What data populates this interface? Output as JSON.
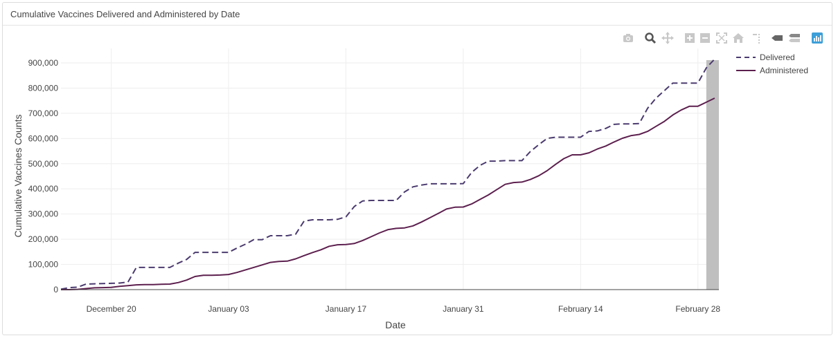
{
  "panel": {
    "title": "Cumulative Vaccines Delivered and Administered by Date"
  },
  "modebar": {
    "buttons": [
      "camera-icon",
      "zoom-icon",
      "pan-icon",
      "zoom-in-icon",
      "zoom-out-icon",
      "autoscale-icon",
      "reset-axes-icon",
      "spike-lines-icon",
      "hover-closest-icon",
      "hover-compare-icon",
      "plotly-logo-icon"
    ]
  },
  "chart_data": {
    "type": "line",
    "xlabel": "Date",
    "ylabel": "Cumulative Vaccines Counts",
    "x_tick_labels": [
      "December 20",
      "January 03",
      "January 17",
      "January 31",
      "February 14",
      "February 28"
    ],
    "x_tick_days": [
      5,
      19,
      33,
      47,
      61,
      75
    ],
    "y_tick_labels": [
      "0",
      "100,000",
      "200,000",
      "300,000",
      "400,000",
      "500,000",
      "600,000",
      "700,000",
      "800,000",
      "900,000"
    ],
    "y_tick_values": [
      0,
      100000,
      200000,
      300000,
      400000,
      500000,
      600000,
      700000,
      800000,
      900000
    ],
    "xlim_days": [
      -1,
      77.5
    ],
    "ylim": [
      0,
      900000
    ],
    "highlight_range_days": [
      76,
      78
    ],
    "highlight_color": "#bfbfbf",
    "grid": true,
    "legend_position": "top-right",
    "series": [
      {
        "name": "Delivered",
        "color": "#4a3a6e",
        "dash": "dashed",
        "x_days": [
          -1,
          0,
          1,
          2,
          3,
          4,
          5,
          6,
          7,
          8,
          9,
          10,
          11,
          12,
          13,
          14,
          15,
          16,
          17,
          18,
          19,
          20,
          21,
          22,
          23,
          24,
          25,
          26,
          27,
          28,
          29,
          30,
          31,
          32,
          33,
          34,
          35,
          36,
          37,
          38,
          39,
          40,
          41,
          42,
          43,
          44,
          45,
          46,
          47,
          48,
          49,
          50,
          51,
          52,
          53,
          54,
          55,
          56,
          57,
          58,
          59,
          60,
          61,
          62,
          63,
          64,
          65,
          66,
          67,
          68,
          69,
          70,
          71,
          72,
          73,
          74,
          75,
          76,
          77
        ],
        "values": [
          2000,
          8000,
          10000,
          22000,
          23000,
          24000,
          25000,
          26000,
          30000,
          88000,
          88000,
          88000,
          88000,
          88000,
          105000,
          120000,
          148000,
          148000,
          148000,
          148000,
          148000,
          165000,
          180000,
          198000,
          198000,
          214000,
          214000,
          214000,
          220000,
          272000,
          277000,
          277000,
          277000,
          279000,
          289000,
          330000,
          352000,
          354000,
          354000,
          354000,
          354000,
          388000,
          408000,
          415000,
          420000,
          420000,
          420000,
          420000,
          421000,
          465000,
          493000,
          510000,
          510000,
          512000,
          512000,
          512000,
          548000,
          575000,
          600000,
          605000,
          605000,
          605000,
          605000,
          628000,
          630000,
          640000,
          656000,
          658000,
          658000,
          659000,
          720000,
          760000,
          790000,
          820000,
          820000,
          820000,
          820000,
          880000,
          915000
        ]
      },
      {
        "name": "Administered",
        "color": "#5c1f4e",
        "dash": "solid",
        "x_days": [
          -1,
          0,
          1,
          2,
          3,
          4,
          5,
          6,
          7,
          8,
          9,
          10,
          11,
          12,
          13,
          14,
          15,
          16,
          17,
          18,
          19,
          20,
          21,
          22,
          23,
          24,
          25,
          26,
          27,
          28,
          29,
          30,
          31,
          32,
          33,
          34,
          35,
          36,
          37,
          38,
          39,
          40,
          41,
          42,
          43,
          44,
          45,
          46,
          47,
          48,
          49,
          50,
          51,
          52,
          53,
          54,
          55,
          56,
          57,
          58,
          59,
          60,
          61,
          62,
          63,
          64,
          65,
          66,
          67,
          68,
          69,
          70,
          71,
          72,
          73,
          74,
          75,
          76,
          77
        ],
        "values": [
          0,
          0,
          1000,
          4000,
          7000,
          8000,
          9000,
          13000,
          16000,
          19000,
          20000,
          20000,
          21000,
          22000,
          28000,
          38000,
          52000,
          57000,
          57000,
          58000,
          60000,
          68000,
          78000,
          88000,
          98000,
          108000,
          112000,
          113000,
          122000,
          135000,
          147000,
          158000,
          172000,
          178000,
          179000,
          183000,
          195000,
          210000,
          225000,
          238000,
          243000,
          245000,
          253000,
          268000,
          285000,
          302000,
          320000,
          327000,
          328000,
          340000,
          358000,
          376000,
          397000,
          418000,
          425000,
          427000,
          437000,
          452000,
          472000,
          497000,
          520000,
          535000,
          535000,
          543000,
          558000,
          570000,
          586000,
          601000,
          611000,
          616000,
          628000,
          648000,
          668000,
          693000,
          713000,
          728000,
          728000,
          744000,
          760000
        ]
      }
    ]
  }
}
